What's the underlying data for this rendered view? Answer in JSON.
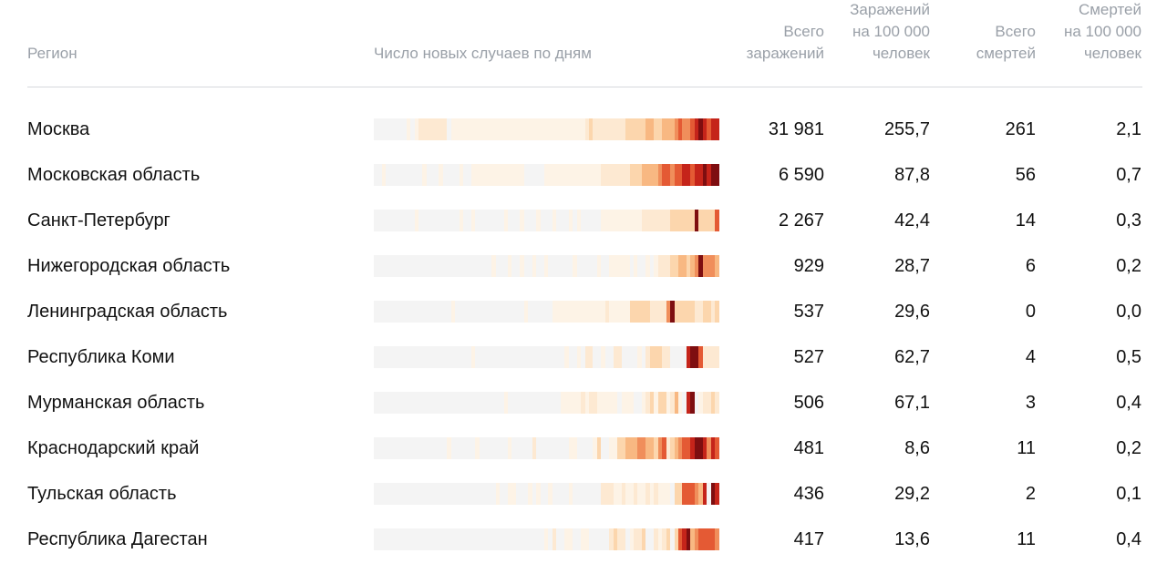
{
  "columns": {
    "region": "Регион",
    "chart": "Число новых случаев по дням",
    "total_cases": [
      "Всего",
      "заражений"
    ],
    "cases_per_100k": [
      "Заражений",
      "на 100 000",
      "человек"
    ],
    "total_deaths": [
      "Всего",
      "смертей"
    ],
    "deaths_per_100k": [
      "Смертей",
      "на 100 000",
      "человек"
    ]
  },
  "rows": [
    {
      "region": "Москва",
      "total_cases": "31 981",
      "cases_per_100k": "255,7",
      "total_deaths": "261",
      "deaths_per_100k": "2,1"
    },
    {
      "region": "Московская область",
      "total_cases": "6 590",
      "cases_per_100k": "87,8",
      "total_deaths": "56",
      "deaths_per_100k": "0,7"
    },
    {
      "region": "Санкт-Петербург",
      "total_cases": "2 267",
      "cases_per_100k": "42,4",
      "total_deaths": "14",
      "deaths_per_100k": "0,3"
    },
    {
      "region": "Нижегородская область",
      "total_cases": "929",
      "cases_per_100k": "28,7",
      "total_deaths": "6",
      "deaths_per_100k": "0,2"
    },
    {
      "region": "Ленинградская область",
      "total_cases": "537",
      "cases_per_100k": "29,6",
      "total_deaths": "0",
      "deaths_per_100k": "0,0"
    },
    {
      "region": "Республика Коми",
      "total_cases": "527",
      "cases_per_100k": "62,7",
      "total_deaths": "4",
      "deaths_per_100k": "0,5"
    },
    {
      "region": "Мурманская область",
      "total_cases": "506",
      "cases_per_100k": "67,1",
      "total_deaths": "3",
      "deaths_per_100k": "0,4"
    },
    {
      "region": "Краснодарский край",
      "total_cases": "481",
      "cases_per_100k": "8,6",
      "total_deaths": "11",
      "deaths_per_100k": "0,2"
    },
    {
      "region": "Тульская область",
      "total_cases": "436",
      "cases_per_100k": "29,2",
      "total_deaths": "2",
      "deaths_per_100k": "0,1"
    },
    {
      "region": "Республика Дагестан",
      "total_cases": "417",
      "cases_per_100k": "13,6",
      "total_deaths": "11",
      "deaths_per_100k": "0,4"
    }
  ],
  "chart_data": {
    "type": "heatmap",
    "title": "Число новых случаев по дням",
    "color_scale": [
      "#f4f4f4",
      "#fdf3e6",
      "#fde9d2",
      "#fcd6ad",
      "#f8b882",
      "#f08e5b",
      "#e45a34",
      "#c5241a",
      "#7e0e10"
    ],
    "series": [
      {
        "name": "Москва",
        "values": [
          0,
          0,
          0,
          0,
          0,
          0,
          0,
          0,
          1,
          0,
          1,
          2,
          2,
          2,
          2,
          2,
          2,
          2,
          0,
          1,
          1,
          1,
          1,
          1,
          1,
          1,
          1,
          1,
          1,
          1,
          1,
          1,
          1,
          1,
          1,
          1,
          1,
          1,
          1,
          1,
          1,
          1,
          1,
          1,
          1,
          1,
          1,
          1,
          1,
          1,
          1,
          1,
          2,
          3,
          2,
          2,
          2,
          2,
          2,
          2,
          2,
          2,
          3,
          3,
          3,
          3,
          3,
          4,
          4,
          3,
          3,
          4,
          4,
          4,
          5,
          6,
          5,
          5,
          6,
          7,
          8,
          7,
          6,
          7,
          7
        ]
      },
      {
        "name": "Московская область",
        "values": [
          0,
          0,
          1,
          0,
          0,
          0,
          0,
          0,
          0,
          0,
          0,
          0,
          1,
          0,
          0,
          0,
          1,
          0,
          0,
          0,
          0,
          1,
          0,
          0,
          1,
          1,
          1,
          1,
          1,
          1,
          1,
          1,
          1,
          1,
          1,
          1,
          1,
          0,
          0,
          0,
          0,
          0,
          1,
          1,
          1,
          1,
          1,
          1,
          1,
          1,
          1,
          1,
          1,
          1,
          1,
          1,
          2,
          2,
          2,
          2,
          2,
          2,
          2,
          3,
          3,
          3,
          4,
          4,
          4,
          4,
          5,
          6,
          6,
          5,
          6,
          6,
          7,
          7,
          6,
          7,
          7,
          8,
          7,
          8,
          8
        ]
      },
      {
        "name": "Санкт-Петербург",
        "values": [
          0,
          0,
          0,
          0,
          0,
          0,
          0,
          0,
          0,
          0,
          1,
          0,
          0,
          0,
          0,
          0,
          0,
          0,
          0,
          0,
          0,
          1,
          0,
          0,
          1,
          0,
          0,
          0,
          0,
          0,
          0,
          0,
          1,
          0,
          0,
          0,
          1,
          0,
          0,
          0,
          1,
          0,
          0,
          0,
          1,
          0,
          0,
          0,
          1,
          0,
          1,
          0,
          0,
          0,
          0,
          0,
          1,
          1,
          1,
          1,
          1,
          1,
          1,
          1,
          1,
          1,
          2,
          2,
          2,
          2,
          2,
          2,
          2,
          3,
          3,
          3,
          3,
          3,
          3,
          8,
          3,
          3,
          3,
          3,
          6
        ]
      },
      {
        "name": "Нижегородская область",
        "values": [
          0,
          0,
          0,
          0,
          0,
          0,
          0,
          0,
          0,
          0,
          0,
          0,
          0,
          0,
          0,
          0,
          0,
          0,
          0,
          0,
          0,
          0,
          0,
          0,
          0,
          0,
          0,
          0,
          0,
          1,
          0,
          0,
          0,
          1,
          0,
          0,
          1,
          0,
          0,
          1,
          0,
          0,
          1,
          0,
          0,
          0,
          0,
          0,
          0,
          1,
          0,
          0,
          0,
          0,
          0,
          1,
          0,
          0,
          1,
          1,
          1,
          1,
          1,
          0,
          1,
          0,
          0,
          1,
          0,
          1,
          2,
          2,
          2,
          3,
          3,
          4,
          4,
          3,
          4,
          5,
          8,
          5,
          5,
          5,
          4
        ]
      },
      {
        "name": "Ленинградская область",
        "values": [
          0,
          0,
          0,
          0,
          0,
          0,
          0,
          0,
          0,
          0,
          0,
          0,
          0,
          0,
          0,
          0,
          0,
          0,
          0,
          1,
          0,
          0,
          0,
          0,
          0,
          0,
          0,
          0,
          0,
          0,
          0,
          0,
          0,
          0,
          0,
          0,
          0,
          1,
          0,
          0,
          0,
          0,
          0,
          0,
          1,
          1,
          1,
          1,
          1,
          1,
          1,
          1,
          1,
          1,
          1,
          1,
          1,
          2,
          1,
          1,
          1,
          1,
          1,
          3,
          3,
          3,
          3,
          3,
          2,
          2,
          2,
          2,
          5,
          8,
          3,
          3,
          3,
          3,
          3,
          2,
          2,
          3,
          3,
          2,
          3
        ]
      },
      {
        "name": "Республика Коми",
        "values": [
          0,
          0,
          0,
          0,
          0,
          0,
          0,
          0,
          0,
          0,
          0,
          0,
          0,
          0,
          0,
          0,
          0,
          0,
          0,
          0,
          0,
          0,
          0,
          0,
          1,
          0,
          0,
          0,
          0,
          0,
          0,
          0,
          0,
          0,
          0,
          0,
          0,
          0,
          0,
          0,
          0,
          0,
          0,
          0,
          0,
          0,
          0,
          1,
          0,
          0,
          1,
          0,
          2,
          2,
          0,
          0,
          1,
          0,
          0,
          2,
          2,
          0,
          0,
          0,
          0,
          1,
          0,
          2,
          3,
          3,
          3,
          2,
          2,
          0,
          0,
          0,
          0,
          7,
          8,
          8,
          6,
          2,
          2,
          2,
          2
        ]
      },
      {
        "name": "Мурманская область",
        "values": [
          0,
          0,
          0,
          0,
          0,
          0,
          0,
          0,
          0,
          0,
          0,
          0,
          0,
          0,
          0,
          0,
          0,
          0,
          0,
          0,
          0,
          0,
          0,
          0,
          0,
          0,
          0,
          0,
          0,
          0,
          0,
          0,
          1,
          0,
          0,
          0,
          0,
          0,
          0,
          0,
          0,
          0,
          0,
          0,
          0,
          0,
          1,
          1,
          1,
          1,
          1,
          2,
          1,
          2,
          2,
          1,
          1,
          1,
          1,
          1,
          0,
          1,
          1,
          1,
          0,
          0,
          1,
          2,
          3,
          1,
          3,
          3,
          1,
          2,
          4,
          1,
          0,
          7,
          8,
          0,
          1,
          2,
          2,
          3,
          2
        ]
      },
      {
        "name": "Краснодарский край",
        "values": [
          0,
          0,
          0,
          0,
          0,
          0,
          0,
          0,
          0,
          0,
          0,
          0,
          0,
          0,
          0,
          0,
          0,
          0,
          1,
          0,
          0,
          0,
          0,
          0,
          0,
          1,
          0,
          0,
          0,
          0,
          0,
          0,
          0,
          1,
          0,
          0,
          0,
          0,
          0,
          2,
          0,
          0,
          0,
          0,
          0,
          0,
          0,
          0,
          1,
          1,
          0,
          0,
          0,
          0,
          1,
          3,
          0,
          0,
          1,
          1,
          3,
          3,
          4,
          4,
          4,
          5,
          5,
          4,
          4,
          3,
          5,
          6,
          2,
          3,
          4,
          5,
          6,
          6,
          7,
          8,
          8,
          7,
          5,
          7,
          6
        ]
      },
      {
        "name": "Тульская область",
        "values": [
          0,
          0,
          0,
          0,
          0,
          0,
          0,
          0,
          0,
          0,
          0,
          0,
          0,
          0,
          0,
          0,
          0,
          0,
          0,
          0,
          0,
          0,
          0,
          0,
          0,
          0,
          0,
          0,
          0,
          0,
          1,
          0,
          0,
          1,
          1,
          0,
          0,
          0,
          1,
          0,
          1,
          0,
          0,
          1,
          0,
          0,
          0,
          0,
          1,
          0,
          0,
          0,
          0,
          0,
          0,
          0,
          2,
          2,
          2,
          1,
          1,
          2,
          1,
          1,
          2,
          1,
          1,
          2,
          1,
          2,
          1,
          1,
          1,
          0,
          3,
          3,
          6,
          6,
          6,
          5,
          4,
          7,
          0,
          8,
          7
        ]
      },
      {
        "name": "Республика Дагестан",
        "values": [
          0,
          0,
          0,
          0,
          0,
          0,
          0,
          0,
          0,
          0,
          0,
          0,
          0,
          0,
          0,
          0,
          0,
          0,
          0,
          0,
          0,
          0,
          0,
          0,
          0,
          0,
          0,
          0,
          0,
          0,
          0,
          0,
          0,
          0,
          0,
          0,
          0,
          0,
          0,
          0,
          0,
          0,
          1,
          0,
          2,
          0,
          0,
          1,
          1,
          0,
          0,
          1,
          1,
          0,
          0,
          0,
          0,
          0,
          2,
          3,
          2,
          2,
          0,
          1,
          2,
          2,
          3,
          0,
          0,
          2,
          1,
          2,
          3,
          0,
          3,
          6,
          7,
          8,
          4,
          5,
          6,
          6,
          6,
          6,
          5
        ]
      }
    ]
  }
}
